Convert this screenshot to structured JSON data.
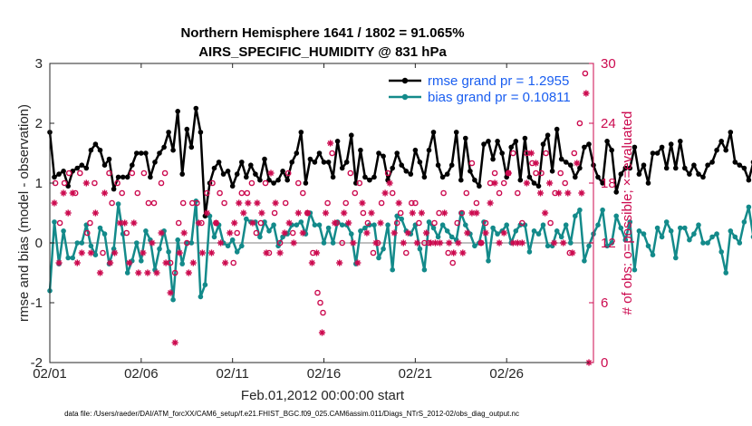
{
  "title_line1": "Northern Hemisphere 1641 / 1802 = 91.065%",
  "title_line2": "AIRS_SPECIFIC_HUMIDITY @ 831 hPa",
  "footer": "data file: /Users/raeder/DAI/ATM_forcXX/CAM6_setup/f.e21.FHIST_BGC.f09_025.CAM6assim.011/Diags_NTrS_2012-02/obs_diag_output.nc",
  "colors": {
    "rmse": "#000000",
    "bias": "#138a8a",
    "obs": "#cc0a4f",
    "zero_line": "#c0c0c0",
    "legend_text": "#1a5ef0"
  },
  "chart_data": {
    "type": "line",
    "xlabel": "Feb.01,2012 00:00:00 start",
    "ylabel": "rmse and bias (model - observation)",
    "y2label": "# of obs: o=possible; ×=evaluated",
    "xlim": [
      0,
      29.75
    ],
    "ylim": [
      -2,
      3
    ],
    "y2lim": [
      0,
      30
    ],
    "x_ticks": [
      0,
      5,
      10,
      15,
      20,
      25
    ],
    "x_tick_labels": [
      "02/01",
      "02/06",
      "02/11",
      "02/16",
      "02/21",
      "02/26"
    ],
    "y_ticks": [
      -2,
      -1,
      0,
      1,
      2,
      3
    ],
    "y_tick_labels": [
      "-2",
      "-1",
      "0",
      "1",
      "2",
      "3"
    ],
    "y2_ticks": [
      0,
      6,
      12,
      18,
      24,
      30
    ],
    "y2_tick_labels": [
      "0",
      "6",
      "12",
      "18",
      "24",
      "30"
    ],
    "series": [
      {
        "name": "rmse grand pr = 1.2955",
        "axis": "left",
        "x_start": 0,
        "x_step": 0.25,
        "values": [
          1.85,
          1.1,
          1.15,
          1.2,
          0.95,
          1.2,
          1.25,
          1.3,
          1.25,
          1.55,
          1.65,
          1.55,
          1.3,
          1.4,
          0.9,
          1.1,
          1.1,
          1.1,
          1.3,
          1.5,
          1.5,
          1.5,
          1.1,
          1.35,
          1.5,
          1.6,
          1.85,
          1.55,
          2.2,
          1.15,
          1.9,
          1.6,
          2.25,
          1.85,
          0.45,
          1.0,
          1.25,
          1.35,
          1.15,
          1.2,
          0.95,
          1.15,
          1.35,
          1.1,
          1.3,
          1.15,
          1.05,
          1.4,
          1.05,
          1.0,
          1.05,
          1.2,
          1.05,
          1.35,
          1.5,
          1.85,
          1.0,
          1.4,
          1.35,
          1.5,
          1.35,
          1.35,
          1.1,
          1.7,
          1.25,
          1.35,
          1.8,
          1.0,
          1.55,
          1.1,
          1.05,
          1.1,
          1.5,
          1.45,
          1.05,
          1.25,
          1.5,
          1.3,
          1.2,
          1.15,
          1.55,
          1.35,
          1.1,
          1.55,
          1.85,
          1.3,
          1.1,
          1.15,
          1.3,
          1.85,
          1.05,
          1.75,
          1.2,
          1.05,
          0.95,
          1.65,
          1.7,
          1.4,
          1.7,
          1.5,
          1.1,
          1.6,
          1.7,
          1.05,
          1.75,
          1.1,
          1.0,
          0.95,
          1.65,
          1.8,
          1.2,
          1.9,
          1.4,
          1.35,
          1.3,
          1.1,
          1.25,
          1.6,
          1.65,
          1.3,
          1.1,
          1.0,
          1.7,
          1.55,
          0.85,
          1.15,
          1.25,
          1.25,
          1.6,
          1.15,
          1.3,
          1.0,
          1.5,
          1.5,
          1.6,
          1.25,
          1.65,
          1.25,
          1.7,
          1.25,
          1.15,
          1.3,
          1.15,
          1.1,
          1.3,
          1.35,
          1.55,
          1.7,
          1.55,
          1.85,
          1.35,
          1.3,
          1.25,
          1.05,
          1.35,
          1.25,
          1.45,
          1.5,
          1.6,
          1.4,
          1.35,
          1.65,
          1.25,
          1.65,
          1.35,
          1.3,
          1.2,
          1.25,
          1.6,
          1.8,
          1.3,
          1.25
        ]
      },
      {
        "name": "bias grand pr = 0.10811",
        "axis": "left",
        "x_start": 0,
        "x_step": 0.25,
        "values": [
          -0.8,
          0.35,
          -0.35,
          0.2,
          -0.25,
          -0.25,
          0.0,
          0.0,
          0.3,
          -0.05,
          -0.2,
          0.25,
          0.15,
          -0.35,
          -0.1,
          0.65,
          0.15,
          -0.5,
          -0.3,
          0.0,
          -0.3,
          0.2,
          0.05,
          -0.45,
          -0.1,
          0.2,
          -0.15,
          -0.95,
          0.05,
          -0.35,
          0.0,
          0.0,
          0.7,
          -0.9,
          -0.7,
          0.45,
          0.1,
          0.3,
          0.0,
          -0.05,
          0.05,
          -0.15,
          -0.05,
          0.4,
          0.35,
          0.35,
          0.1,
          0.35,
          0.2,
          0.3,
          -0.05,
          0.1,
          0.15,
          0.3,
          0.3,
          0.35,
          0.15,
          0.5,
          0.3,
          0.3,
          0.0,
          0.25,
          0.0,
          0.35,
          0.3,
          0.3,
          0.15,
          -0.35,
          0.2,
          0.25,
          0.3,
          0.3,
          -0.25,
          -0.1,
          0.3,
          -0.45,
          0.45,
          0.4,
          0.2,
          0.15,
          0.3,
          -0.1,
          -0.45,
          0.35,
          0.25,
          0.1,
          0.3,
          0.2,
          0.1,
          0.05,
          0.5,
          0.3,
          0.15,
          -0.05,
          0.0,
          0.35,
          -0.3,
          0.25,
          0.15,
          0.2,
          0.3,
          0.0,
          0.2,
          0.3,
          0.3,
          -0.15,
          0.2,
          0.15,
          0.3,
          -0.05,
          -0.05,
          0.2,
          0.1,
          0.3,
          0.0,
          0.45,
          0.55,
          -0.3,
          -0.05,
          0.15,
          0.3,
          0.55,
          -0.05,
          0.0,
          0.45,
          0.25,
          0.05,
          0.35,
          -0.45,
          0.2,
          0.15,
          -0.05,
          -0.2,
          0.25,
          0.1,
          0.35,
          0.2,
          -0.25,
          0.25,
          0.25,
          0.05,
          0.15,
          0.3,
          0.0,
          0.0,
          0.1,
          0.15,
          -0.15,
          -0.5,
          0.2,
          0.1,
          0.0,
          0.35,
          0.6,
          0.1,
          -0.05,
          0.3,
          0.0,
          0.3,
          0.1,
          0.15,
          0.1,
          0.05,
          0.6,
          0.05,
          -0.1,
          0.2,
          -0.15,
          -0.15,
          -0.15,
          -0.05,
          -0.15,
          -0.25,
          -0.1,
          0.2
        ]
      }
    ],
    "obs_possible": {
      "label": "o=possible",
      "axis": "right",
      "points": [
        [
          0.3,
          18
        ],
        [
          0.55,
          14
        ],
        [
          0.8,
          18
        ],
        [
          1.05,
          19
        ],
        [
          1.4,
          17
        ],
        [
          1.65,
          19
        ],
        [
          2.05,
          13
        ],
        [
          2.2,
          14
        ],
        [
          2.45,
          18
        ],
        [
          2.9,
          11
        ],
        [
          3.25,
          19
        ],
        [
          3.4,
          16
        ],
        [
          3.7,
          18
        ],
        [
          3.95,
          17
        ],
        [
          4.2,
          13
        ],
        [
          4.5,
          19
        ],
        [
          4.8,
          17
        ],
        [
          5.15,
          19
        ],
        [
          5.4,
          16
        ],
        [
          5.7,
          16
        ],
        [
          6.1,
          18
        ],
        [
          6.3,
          19
        ],
        [
          6.6,
          10
        ],
        [
          6.85,
          9
        ],
        [
          7.05,
          14
        ],
        [
          7.3,
          16
        ],
        [
          7.5,
          12
        ],
        [
          7.8,
          16
        ],
        [
          8.05,
          16
        ],
        [
          8.3,
          14
        ],
        [
          8.6,
          17
        ],
        [
          8.9,
          18
        ],
        [
          9.1,
          14
        ],
        [
          9.3,
          17
        ],
        [
          9.55,
          16
        ],
        [
          10.05,
          10
        ],
        [
          10.25,
          13
        ],
        [
          10.5,
          17
        ],
        [
          10.8,
          17
        ],
        [
          11.05,
          18
        ],
        [
          11.3,
          13
        ],
        [
          11.55,
          14
        ],
        [
          11.8,
          18
        ],
        [
          12.0,
          11
        ],
        [
          12.3,
          15
        ],
        [
          12.6,
          12
        ],
        [
          12.9,
          16
        ],
        [
          13.05,
          19
        ],
        [
          13.3,
          13
        ],
        [
          13.6,
          18
        ],
        [
          13.85,
          17
        ],
        [
          14.1,
          15
        ],
        [
          14.4,
          11
        ],
        [
          14.65,
          7
        ],
        [
          14.8,
          6
        ],
        [
          14.95,
          5
        ],
        [
          15.2,
          16
        ],
        [
          15.45,
          21
        ],
        [
          15.7,
          14
        ],
        [
          16.0,
          12
        ],
        [
          16.2,
          16
        ],
        [
          16.45,
          19
        ],
        [
          16.7,
          17
        ],
        [
          16.95,
          18
        ],
        [
          17.15,
          15
        ],
        [
          17.4,
          14
        ],
        [
          17.7,
          11
        ],
        [
          17.95,
          12
        ],
        [
          18.15,
          16
        ],
        [
          18.5,
          19
        ],
        [
          18.75,
          17
        ],
        [
          19.0,
          14
        ],
        [
          19.2,
          15
        ],
        [
          19.5,
          11
        ],
        [
          19.8,
          16
        ],
        [
          20.0,
          16
        ],
        [
          20.2,
          14
        ],
        [
          20.5,
          12
        ],
        [
          20.75,
          12
        ],
        [
          21.05,
          14
        ],
        [
          21.3,
          15
        ],
        [
          21.55,
          17
        ],
        [
          21.8,
          11
        ],
        [
          22.05,
          10
        ],
        [
          22.3,
          14
        ],
        [
          22.55,
          15
        ],
        [
          22.8,
          17
        ],
        [
          23.1,
          20
        ],
        [
          23.35,
          16
        ],
        [
          23.6,
          12
        ],
        [
          23.85,
          14
        ],
        [
          24.1,
          18
        ],
        [
          24.35,
          19
        ],
        [
          24.6,
          17
        ],
        [
          24.85,
          18
        ],
        [
          25.1,
          19
        ],
        [
          25.35,
          21
        ],
        [
          25.6,
          17
        ],
        [
          25.85,
          14
        ],
        [
          26.1,
          21
        ],
        [
          26.4,
          20
        ],
        [
          26.6,
          19
        ],
        [
          26.9,
          19
        ],
        [
          27.15,
          21
        ],
        [
          27.4,
          14
        ],
        [
          27.65,
          17
        ],
        [
          27.95,
          19
        ],
        [
          28.2,
          18
        ],
        [
          28.45,
          11
        ],
        [
          28.7,
          21
        ],
        [
          29.0,
          24
        ],
        [
          29.3,
          29
        ]
      ]
    },
    "obs_evaluated": {
      "label": "×=evaluated",
      "axis": "right",
      "points": [
        [
          0.25,
          16
        ],
        [
          0.5,
          10
        ],
        [
          0.75,
          17
        ],
        [
          1.0,
          15
        ],
        [
          1.25,
          17
        ],
        [
          1.5,
          10
        ],
        [
          1.75,
          11
        ],
        [
          2.0,
          18
        ],
        [
          2.25,
          11
        ],
        [
          2.5,
          15
        ],
        [
          2.75,
          9
        ],
        [
          3.0,
          17
        ],
        [
          3.3,
          10
        ],
        [
          3.55,
          11
        ],
        [
          3.85,
          14
        ],
        [
          4.1,
          14
        ],
        [
          4.35,
          10
        ],
        [
          4.6,
          14
        ],
        [
          4.85,
          9
        ],
        [
          5.1,
          11
        ],
        [
          5.35,
          9
        ],
        [
          5.6,
          12
        ],
        [
          5.85,
          9
        ],
        [
          6.1,
          13
        ],
        [
          6.35,
          10
        ],
        [
          6.6,
          7
        ],
        [
          6.85,
          2
        ],
        [
          7.1,
          11
        ],
        [
          7.35,
          13
        ],
        [
          7.6,
          9
        ],
        [
          7.85,
          10
        ],
        [
          8.15,
          14
        ],
        [
          8.35,
          11
        ],
        [
          8.6,
          15
        ],
        [
          8.85,
          11
        ],
        [
          9.1,
          14
        ],
        [
          9.35,
          12
        ],
        [
          9.6,
          10
        ],
        [
          9.85,
          13
        ],
        [
          10.1,
          14
        ],
        [
          10.35,
          16
        ],
        [
          10.6,
          15
        ],
        [
          10.85,
          16
        ],
        [
          11.1,
          14
        ],
        [
          11.35,
          16
        ],
        [
          11.6,
          15
        ],
        [
          11.85,
          11
        ],
        [
          12.1,
          19
        ],
        [
          12.35,
          16
        ],
        [
          12.6,
          11
        ],
        [
          12.85,
          13
        ],
        [
          13.1,
          14
        ],
        [
          13.35,
          12
        ],
        [
          13.6,
          15
        ],
        [
          13.85,
          13
        ],
        [
          14.1,
          15
        ],
        [
          14.35,
          10
        ],
        [
          14.6,
          11
        ],
        [
          14.9,
          3
        ],
        [
          15.1,
          15
        ],
        [
          15.35,
          22
        ],
        [
          15.6,
          14
        ],
        [
          15.85,
          10
        ],
        [
          16.1,
          15
        ],
        [
          16.35,
          14
        ],
        [
          16.6,
          12
        ],
        [
          16.85,
          10
        ],
        [
          17.1,
          16
        ],
        [
          17.35,
          13
        ],
        [
          17.6,
          15
        ],
        [
          17.85,
          12
        ],
        [
          18.1,
          14
        ],
        [
          18.35,
          17
        ],
        [
          18.6,
          18
        ],
        [
          18.85,
          13
        ],
        [
          19.1,
          16
        ],
        [
          19.35,
          12
        ],
        [
          19.6,
          13
        ],
        [
          19.85,
          15
        ],
        [
          20.1,
          12
        ],
        [
          20.35,
          15
        ],
        [
          20.6,
          13
        ],
        [
          20.85,
          12
        ],
        [
          21.1,
          12
        ],
        [
          21.35,
          12
        ],
        [
          21.6,
          15
        ],
        [
          21.85,
          12
        ],
        [
          22.1,
          11
        ],
        [
          22.35,
          12
        ],
        [
          22.6,
          11
        ],
        [
          22.85,
          13
        ],
        [
          23.1,
          15
        ],
        [
          23.35,
          15
        ],
        [
          23.6,
          12
        ],
        [
          23.85,
          13
        ],
        [
          24.1,
          16
        ],
        [
          24.35,
          18
        ],
        [
          24.6,
          12
        ],
        [
          24.85,
          13
        ],
        [
          25.1,
          19
        ],
        [
          25.35,
          12
        ],
        [
          25.6,
          12
        ],
        [
          25.85,
          12
        ],
        [
          26.1,
          18
        ],
        [
          26.35,
          21
        ],
        [
          26.6,
          20
        ],
        [
          26.85,
          17
        ],
        [
          27.1,
          15
        ],
        [
          27.35,
          18
        ],
        [
          27.6,
          12
        ],
        [
          27.85,
          17
        ],
        [
          28.1,
          12
        ],
        [
          28.35,
          17
        ],
        [
          28.6,
          11
        ],
        [
          28.85,
          20
        ],
        [
          29.1,
          17
        ],
        [
          29.35,
          27
        ],
        [
          29.5,
          0
        ]
      ]
    }
  }
}
